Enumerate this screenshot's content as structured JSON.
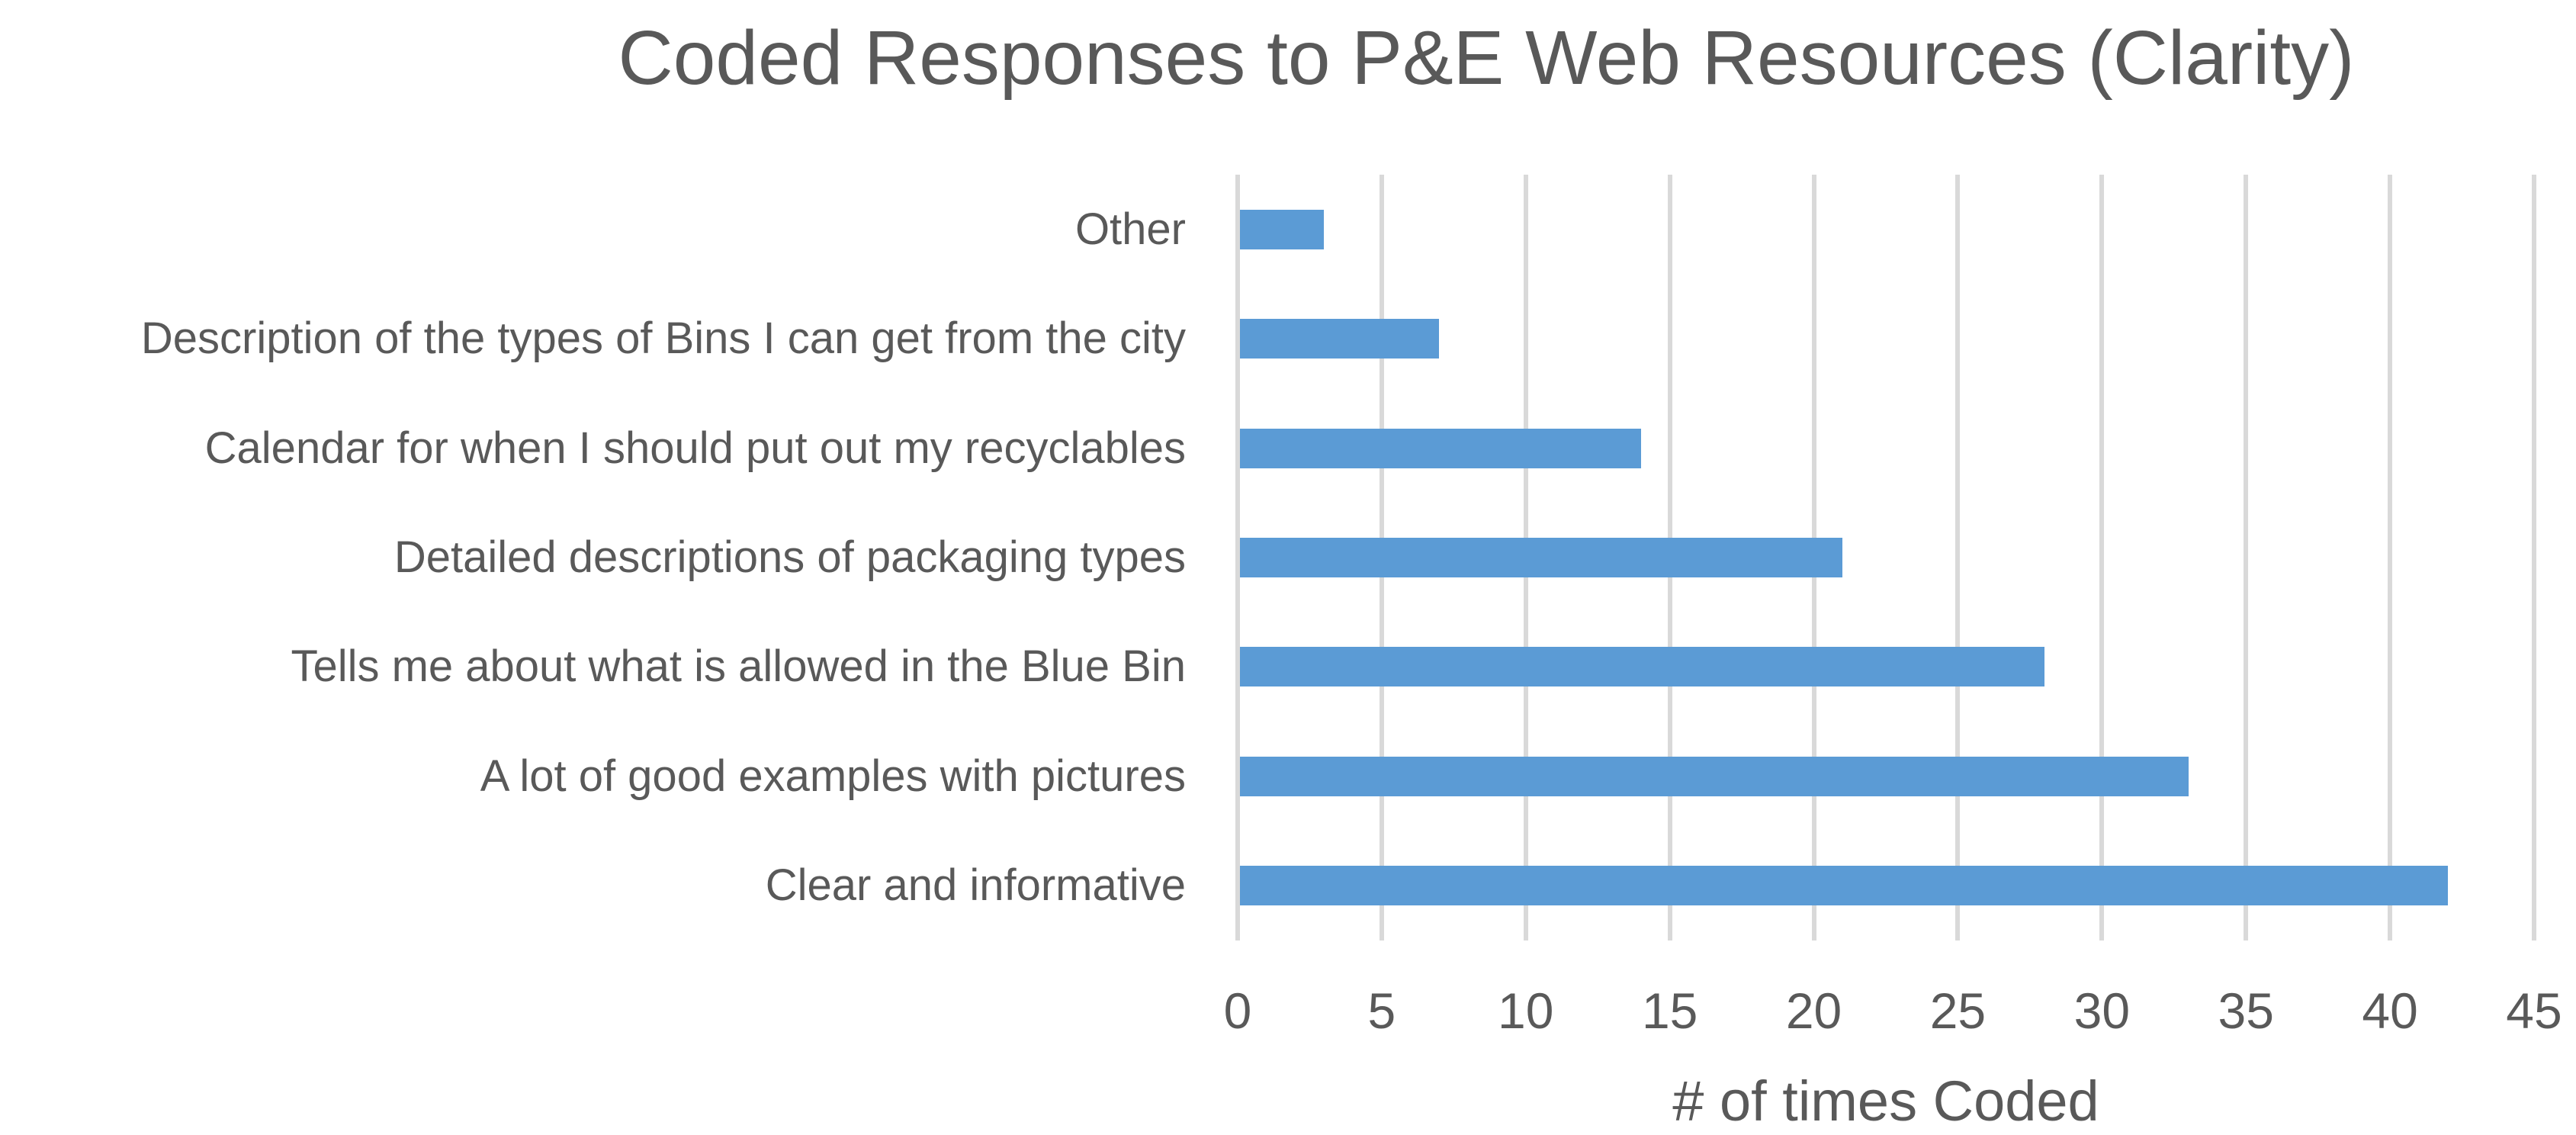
{
  "chart_data": {
    "type": "bar",
    "orientation": "horizontal",
    "title": "Coded Responses to P&E Web Resources (Clarity)",
    "xlabel": "# of times Coded",
    "ylabel": "",
    "categories": [
      "Other",
      "Description of the types of Bins I can get from the city",
      "Calendar for when I should put out my recyclables",
      "Detailed descriptions of packaging types",
      "Tells me about what is allowed in the Blue Bin",
      "A lot of good examples with pictures",
      "Clear and informative"
    ],
    "values": [
      3,
      7,
      14,
      21,
      28,
      33,
      42
    ],
    "xlim": [
      0,
      45
    ],
    "xticks": [
      0,
      5,
      10,
      15,
      20,
      25,
      30,
      35,
      40,
      45
    ],
    "grid": true,
    "legend": false,
    "colors": {
      "bar": "#5B9BD5",
      "gridline": "#D9D9D9",
      "text": "#595959",
      "background": "#FFFFFF"
    }
  }
}
